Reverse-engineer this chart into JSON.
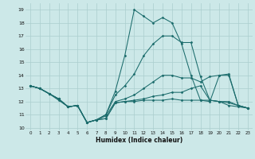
{
  "xlabel": "Humidex (Indice chaleur)",
  "bg_color": "#cce8e8",
  "line_color": "#1a6b6b",
  "grid_color": "#aacece",
  "xlim": [
    -0.5,
    23.5
  ],
  "ylim": [
    9.8,
    19.5
  ],
  "yticks": [
    10,
    11,
    12,
    13,
    14,
    15,
    16,
    17,
    18,
    19
  ],
  "xticks": [
    0,
    1,
    2,
    3,
    4,
    5,
    6,
    7,
    8,
    9,
    10,
    11,
    12,
    13,
    14,
    15,
    16,
    17,
    18,
    19,
    20,
    21,
    22,
    23
  ],
  "lines": [
    [
      13.2,
      13.0,
      12.6,
      12.2,
      11.6,
      11.7,
      10.4,
      10.6,
      10.7,
      11.9,
      12.0,
      12.0,
      12.1,
      12.1,
      12.1,
      12.2,
      12.1,
      12.1,
      12.1,
      12.1,
      12.0,
      11.7,
      11.6,
      11.5
    ],
    [
      13.2,
      13.0,
      12.6,
      12.2,
      11.6,
      11.7,
      10.4,
      10.6,
      10.7,
      11.9,
      12.0,
      12.1,
      12.2,
      12.4,
      12.5,
      12.7,
      12.7,
      13.0,
      13.2,
      12.1,
      12.0,
      11.9,
      11.7,
      11.5
    ],
    [
      13.2,
      13.0,
      12.6,
      12.2,
      11.6,
      11.7,
      10.4,
      10.6,
      10.9,
      12.0,
      12.2,
      12.5,
      13.0,
      13.5,
      14.0,
      14.0,
      13.8,
      13.8,
      13.5,
      13.9,
      14.0,
      14.0,
      11.7,
      11.5
    ],
    [
      13.2,
      13.0,
      12.6,
      12.1,
      11.6,
      11.7,
      10.4,
      10.6,
      11.0,
      12.5,
      13.2,
      14.1,
      15.5,
      16.4,
      17.0,
      17.0,
      16.5,
      16.5,
      13.9,
      12.1,
      12.0,
      12.0,
      11.7,
      11.5
    ],
    [
      13.2,
      13.0,
      12.6,
      12.2,
      11.6,
      11.7,
      10.4,
      10.6,
      11.0,
      12.8,
      15.5,
      19.0,
      18.5,
      18.0,
      18.4,
      18.0,
      16.4,
      14.0,
      12.1,
      12.0,
      14.0,
      14.1,
      11.7,
      11.5
    ]
  ]
}
